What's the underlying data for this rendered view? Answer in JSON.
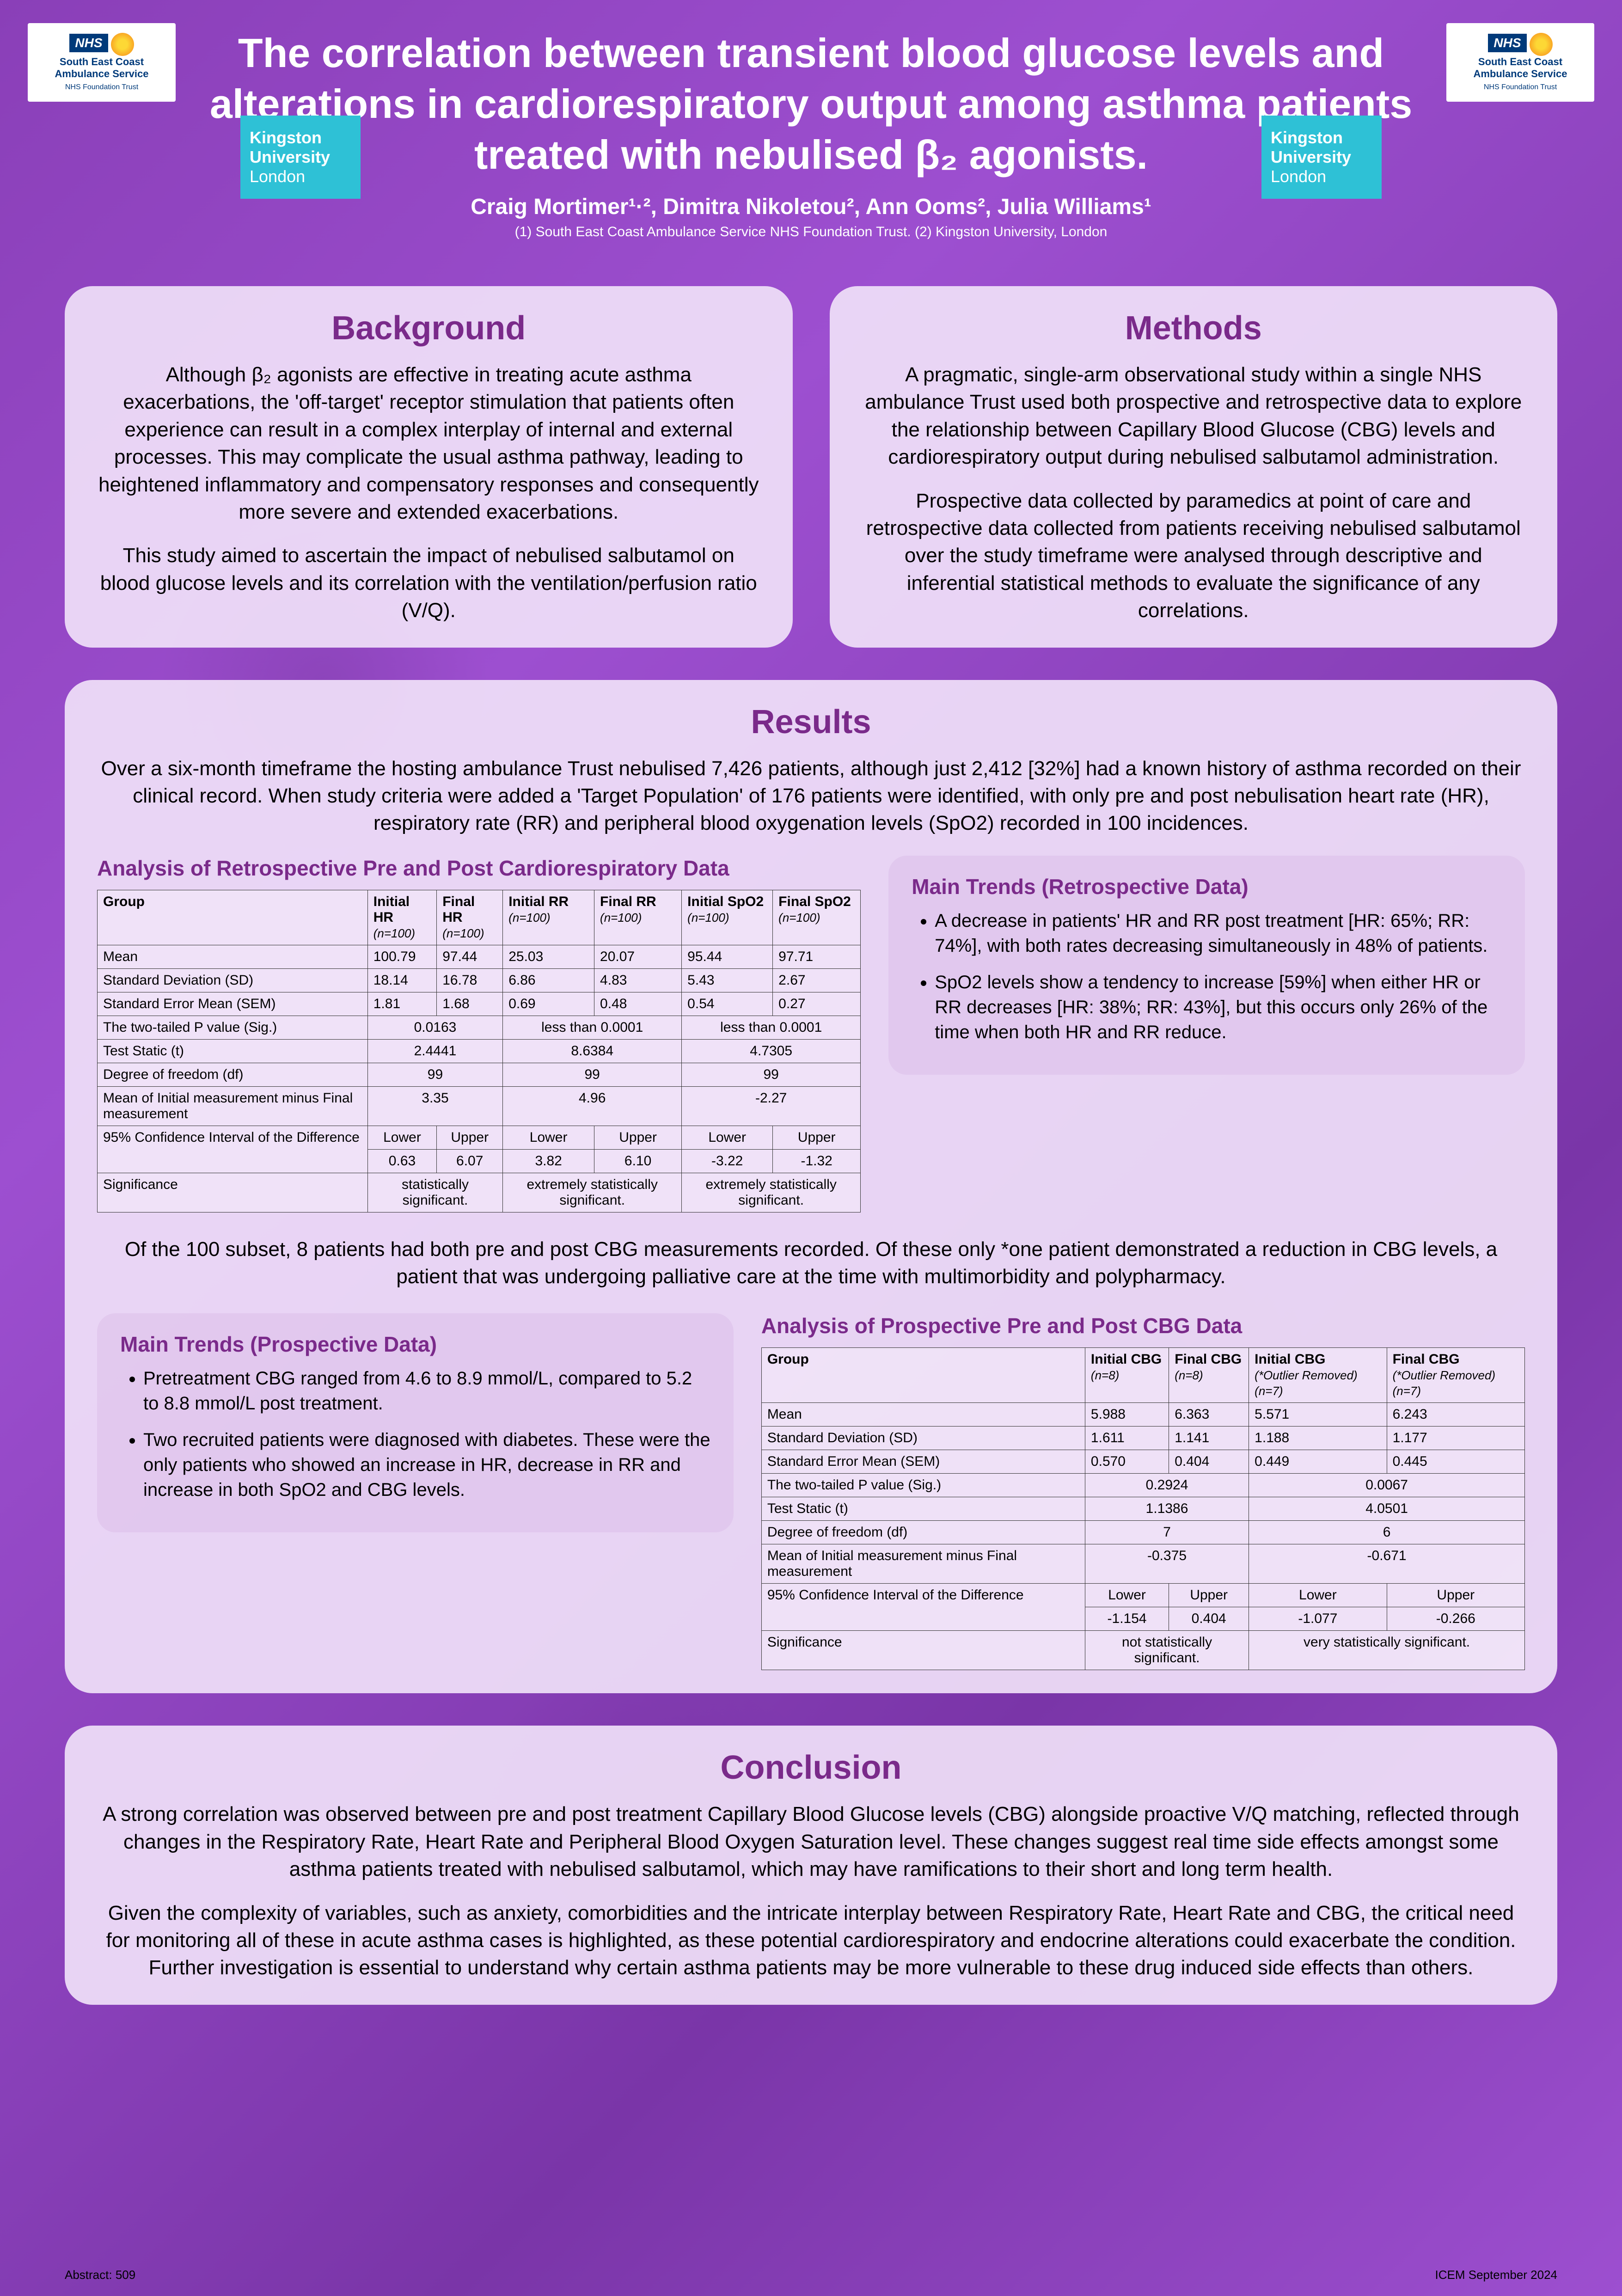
{
  "header": {
    "title": "The correlation between transient blood glucose levels and alterations in cardiorespiratory output among asthma patients treated with nebulised β₂ agonists.",
    "authors": "Craig Mortimer¹·², Dimitra Nikoletou², Ann Ooms², Julia Williams¹",
    "affiliations": "(1) South East Coast Ambulance Service NHS Foundation Trust. (2) Kingston University, London",
    "logo_nhs_text": "South East Coast Ambulance Service",
    "logo_nhs_sub": "NHS Foundation Trust",
    "logo_ku_line1": "Kingston",
    "logo_ku_line2": "University",
    "logo_ku_line3": "London"
  },
  "background": {
    "title": "Background",
    "p1": "Although β₂ agonists are effective in treating acute asthma exacerbations, the 'off-target' receptor stimulation that patients often experience can result in a complex interplay of internal and external processes. This may complicate the usual asthma pathway, leading to heightened inflammatory and compensatory responses and consequently more severe and extended exacerbations.",
    "p2": "This study aimed to ascertain the impact of nebulised salbutamol on blood glucose levels and its correlation with the ventilation/perfusion ratio (V/Q)."
  },
  "methods": {
    "title": "Methods",
    "p1": "A pragmatic, single-arm observational study within a single NHS ambulance Trust used both prospective and retrospective data to explore the relationship between Capillary Blood Glucose (CBG) levels and cardiorespiratory output during nebulised salbutamol administration.",
    "p2": "Prospective data collected by paramedics at point of care and retrospective data collected from patients receiving nebulised salbutamol over the study timeframe were analysed through descriptive and inferential statistical methods to evaluate the significance of any correlations."
  },
  "results": {
    "title": "Results",
    "intro": "Over a six-month timeframe the hosting ambulance Trust nebulised 7,426 patients, although just 2,412 [32%] had a known history of asthma recorded on their clinical record. When study criteria were added a 'Target Population' of 176 patients were identified, with only pre and post nebulisation heart rate (HR), respiratory rate (RR) and peripheral blood oxygenation levels (SpO2) recorded in 100 incidences.",
    "table1_title": "Analysis of Retrospective Pre and Post Cardiorespiratory Data",
    "table1": {
      "cols": [
        "Group",
        "Initial HR",
        "Final HR",
        "Initial RR",
        "Final RR",
        "Initial SpO2",
        "Final SpO2"
      ],
      "col_sub": [
        "",
        "(n=100)",
        "(n=100)",
        "(n=100)",
        "(n=100)",
        "(n=100)",
        "(n=100)"
      ],
      "rows_stats": [
        [
          "Mean",
          "100.79",
          "97.44",
          "25.03",
          "20.07",
          "95.44",
          "97.71"
        ],
        [
          "Standard Deviation (SD)",
          "18.14",
          "16.78",
          "6.86",
          "4.83",
          "5.43",
          "2.67"
        ],
        [
          "Standard Error Mean (SEM)",
          "1.81",
          "1.68",
          "0.69",
          "0.48",
          "0.54",
          "0.27"
        ]
      ],
      "rows_tests": [
        [
          "The two-tailed P value (Sig.)",
          "0.0163",
          "less than 0.0001",
          "less than 0.0001"
        ],
        [
          "Test Static (t)",
          "2.4441",
          "8.6384",
          "4.7305"
        ],
        [
          "Degree of freedom (df)",
          "99",
          "99",
          "99"
        ],
        [
          "Mean of Initial measurement minus Final measurement",
          "3.35",
          "4.96",
          "-2.27"
        ]
      ],
      "ci_label": "95% Confidence Interval of the Difference",
      "ci_headers": [
        "Lower",
        "Upper",
        "Lower",
        "Upper",
        "Lower",
        "Upper"
      ],
      "ci_values": [
        "0.63",
        "6.07",
        "3.82",
        "6.10",
        "-3.22",
        "-1.32"
      ],
      "sig_label": "Significance",
      "sig_values": [
        "statistically significant.",
        "extremely statistically significant.",
        "extremely statistically significant."
      ]
    },
    "trends_retro_title": "Main Trends (Retrospective Data)",
    "trends_retro": [
      "A decrease in patients' HR and RR post treatment [HR: 65%; RR: 74%], with both rates decreasing simultaneously in 48% of patients.",
      "SpO2 levels show a tendency to increase [59%] when either HR or RR decreases [HR: 38%; RR: 43%], but this occurs only 26% of the time when both HR and RR reduce."
    ],
    "mid": "Of the 100 subset, 8 patients had both pre and post CBG measurements recorded. Of these only *one patient demonstrated a reduction in CBG levels, a patient that was undergoing palliative care at the time with multimorbidity and polypharmacy.",
    "trends_pro_title": "Main Trends (Prospective Data)",
    "trends_pro": [
      "Pretreatment CBG ranged from 4.6 to 8.9 mmol/L, compared to 5.2 to 8.8 mmol/L post treatment.",
      "Two recruited patients were diagnosed with diabetes. These were the only patients who showed an increase in HR, decrease in RR and increase in both SpO2 and CBG levels."
    ],
    "table2_title": "Analysis of Prospective Pre and Post CBG Data",
    "table2": {
      "cols": [
        "Group",
        "Initial CBG",
        "Final CBG",
        "Initial CBG",
        "Final CBG"
      ],
      "col_sub": [
        "",
        "(n=8)",
        "(n=8)",
        "(*Outlier Removed) (n=7)",
        "(*Outlier Removed) (n=7)"
      ],
      "rows_stats": [
        [
          "Mean",
          "5.988",
          "6.363",
          "5.571",
          "6.243"
        ],
        [
          "Standard Deviation (SD)",
          "1.611",
          "1.141",
          "1.188",
          "1.177"
        ],
        [
          "Standard Error Mean (SEM)",
          "0.570",
          "0.404",
          "0.449",
          "0.445"
        ]
      ],
      "rows_tests": [
        [
          "The two-tailed P value (Sig.)",
          "0.2924",
          "0.0067"
        ],
        [
          "Test Static (t)",
          "1.1386",
          "4.0501"
        ],
        [
          "Degree of freedom (df)",
          "7",
          "6"
        ],
        [
          "Mean of Initial measurement minus Final measurement",
          "-0.375",
          "-0.671"
        ]
      ],
      "ci_label": "95% Confidence Interval of the Difference",
      "ci_headers": [
        "Lower",
        "Upper",
        "Lower",
        "Upper"
      ],
      "ci_values": [
        "-1.154",
        "0.404",
        "-1.077",
        "-0.266"
      ],
      "sig_label": "Significance",
      "sig_values": [
        "not statistically significant.",
        "very statistically significant."
      ]
    }
  },
  "conclusion": {
    "title": "Conclusion",
    "p1": "A strong correlation was observed between pre and post treatment Capillary Blood Glucose levels (CBG) alongside proactive V/Q matching, reflected through changes in the Respiratory Rate, Heart Rate and Peripheral Blood Oxygen Saturation level. These changes suggest real time side effects amongst some asthma patients treated with nebulised salbutamol, which may have ramifications to their short and long term health.",
    "p2": "Given the complexity of variables, such as anxiety, comorbidities and the intricate interplay between Respiratory Rate, Heart Rate and CBG, the critical need for monitoring all of these in acute asthma cases is highlighted, as these potential cardiorespiratory and endocrine alterations could exacerbate the condition. Further investigation is essential to understand why certain asthma patients may be more vulnerable to these drug induced side effects than others."
  },
  "footer": {
    "left": "Abstract: 509",
    "right": "ICEM September 2024"
  }
}
